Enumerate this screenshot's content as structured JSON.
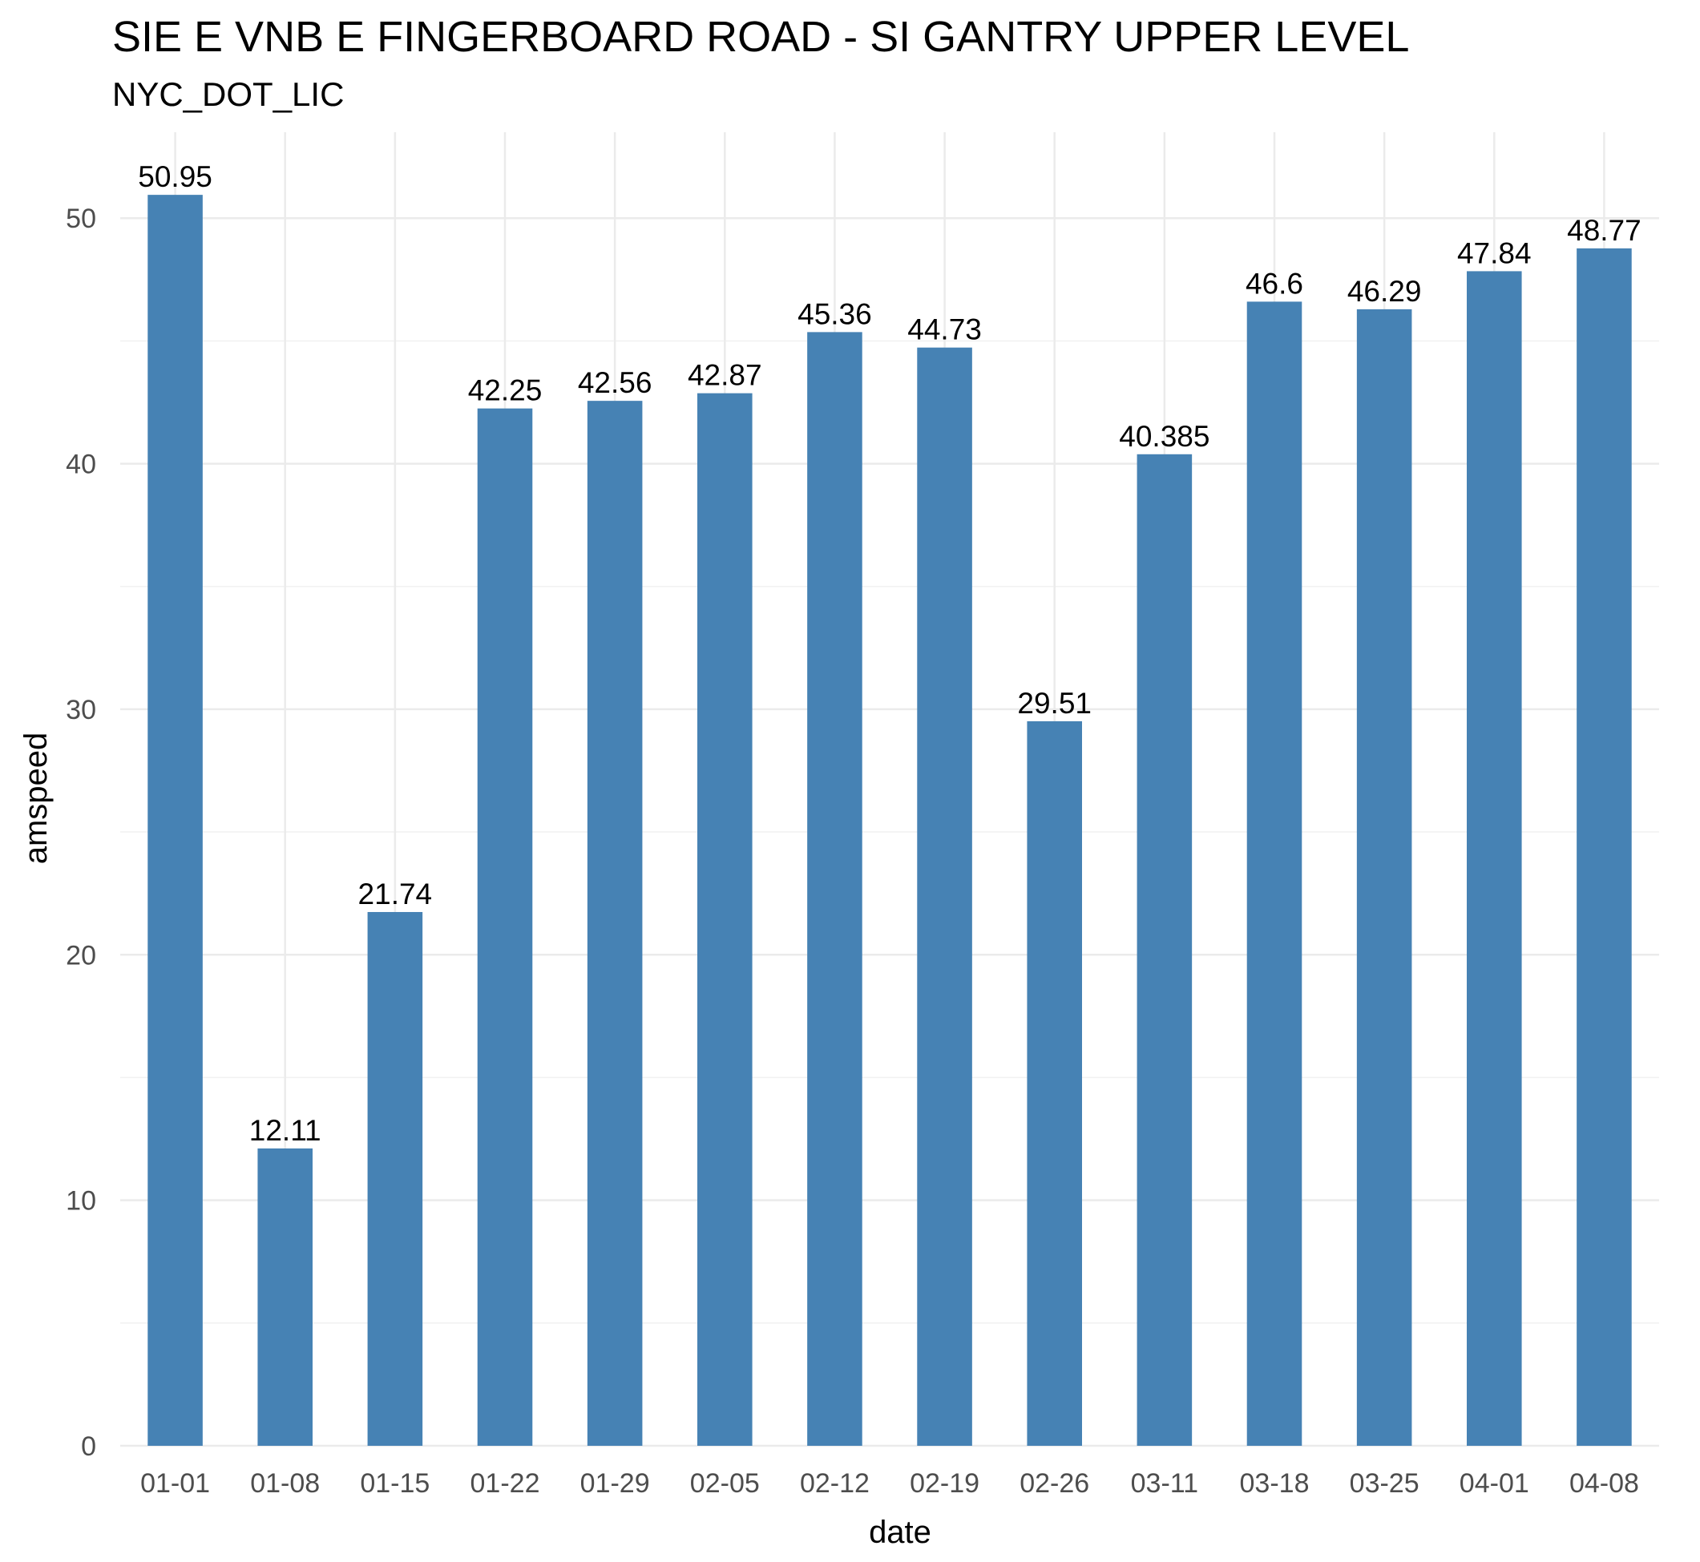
{
  "chart_data": {
    "type": "bar",
    "title": "SIE E VNB E FINGERBOARD ROAD - SI GANTRY UPPER LEVEL",
    "subtitle": "NYC_DOT_LIC",
    "xlabel": "date",
    "ylabel": "amspeed",
    "categories": [
      "01-01",
      "01-08",
      "01-15",
      "01-22",
      "01-29",
      "02-05",
      "02-12",
      "02-19",
      "02-26",
      "03-11",
      "03-18",
      "03-25",
      "04-01",
      "04-08"
    ],
    "values": [
      50.95,
      12.11,
      21.74,
      42.25,
      42.56,
      42.87,
      45.36,
      44.73,
      29.51,
      40.385,
      46.6,
      46.29,
      47.84,
      48.77
    ],
    "value_labels": [
      "50.95",
      "12.11",
      "21.74",
      "42.25",
      "42.56",
      "42.87",
      "45.36",
      "44.73",
      "29.51",
      "40.385",
      "46.6",
      "46.29",
      "47.84",
      "48.77"
    ],
    "y_ticks": [
      0,
      10,
      20,
      30,
      40,
      50
    ],
    "ylim": [
      0,
      53.5
    ],
    "grid": true,
    "legend": "none",
    "bar_color": "#4682b4"
  }
}
